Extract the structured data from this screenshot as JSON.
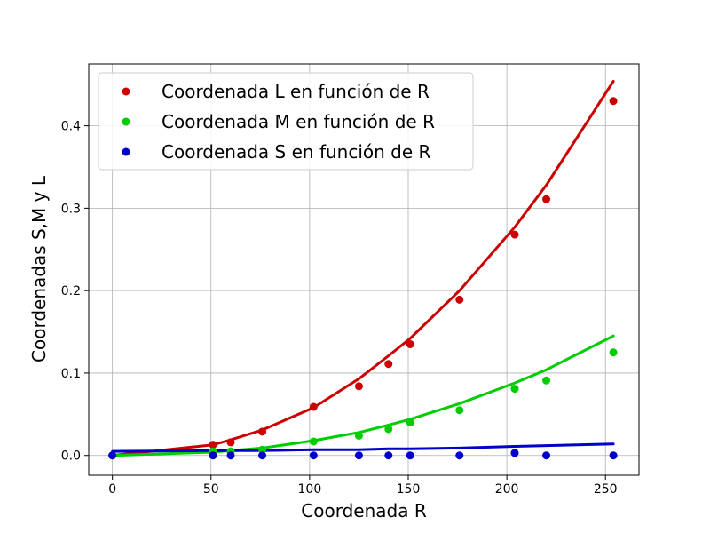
{
  "chart_data": {
    "type": "scatter",
    "xlabel": "Coordenada R",
    "ylabel": "Coordenadas S,M y L",
    "xlim": [
      -12,
      267
    ],
    "ylim": [
      -0.024,
      0.475
    ],
    "xticks": [
      0,
      50,
      100,
      150,
      200,
      250
    ],
    "yticks": [
      0.0,
      0.1,
      0.2,
      0.3,
      0.4
    ],
    "xtick_labels": [
      "0",
      "50",
      "100",
      "150",
      "200",
      "250"
    ],
    "ytick_labels": [
      "0.0",
      "0.1",
      "0.2",
      "0.3",
      "0.4"
    ],
    "grid": true,
    "legend_position": "top-left",
    "x": [
      0,
      51,
      60,
      76,
      102,
      125,
      140,
      151,
      176,
      204,
      220,
      254
    ],
    "series": [
      {
        "name": "Coordenada L en función de R",
        "color": "#cc0000",
        "points": [
          0.0,
          0.013,
          0.016,
          0.029,
          0.059,
          0.084,
          0.111,
          0.135,
          0.189,
          0.268,
          0.311,
          0.43
        ],
        "fit": [
          0.0,
          0.013,
          0.019,
          0.031,
          0.058,
          0.093,
          0.121,
          0.142,
          0.2,
          0.277,
          0.328,
          0.454
        ]
      },
      {
        "name": "Coordenada M en función de R",
        "color": "#00cc00",
        "points": [
          0.0,
          0.005,
          0.005,
          0.007,
          0.017,
          0.024,
          0.032,
          0.04,
          0.055,
          0.081,
          0.091,
          0.125
        ],
        "fit": [
          0.0,
          0.004,
          0.006,
          0.009,
          0.018,
          0.028,
          0.037,
          0.044,
          0.063,
          0.088,
          0.104,
          0.145
        ]
      },
      {
        "name": "Coordenada S en función de R",
        "color": "#0000cc",
        "points": [
          0.0,
          0.0,
          0.0,
          0.0,
          0.0,
          0.0,
          0.0,
          0.0,
          0.0,
          0.003,
          0.0,
          0.0
        ],
        "fit": [
          0.005,
          0.006,
          0.006,
          0.006,
          0.007,
          0.007,
          0.008,
          0.008,
          0.009,
          0.011,
          0.012,
          0.014
        ]
      }
    ]
  }
}
